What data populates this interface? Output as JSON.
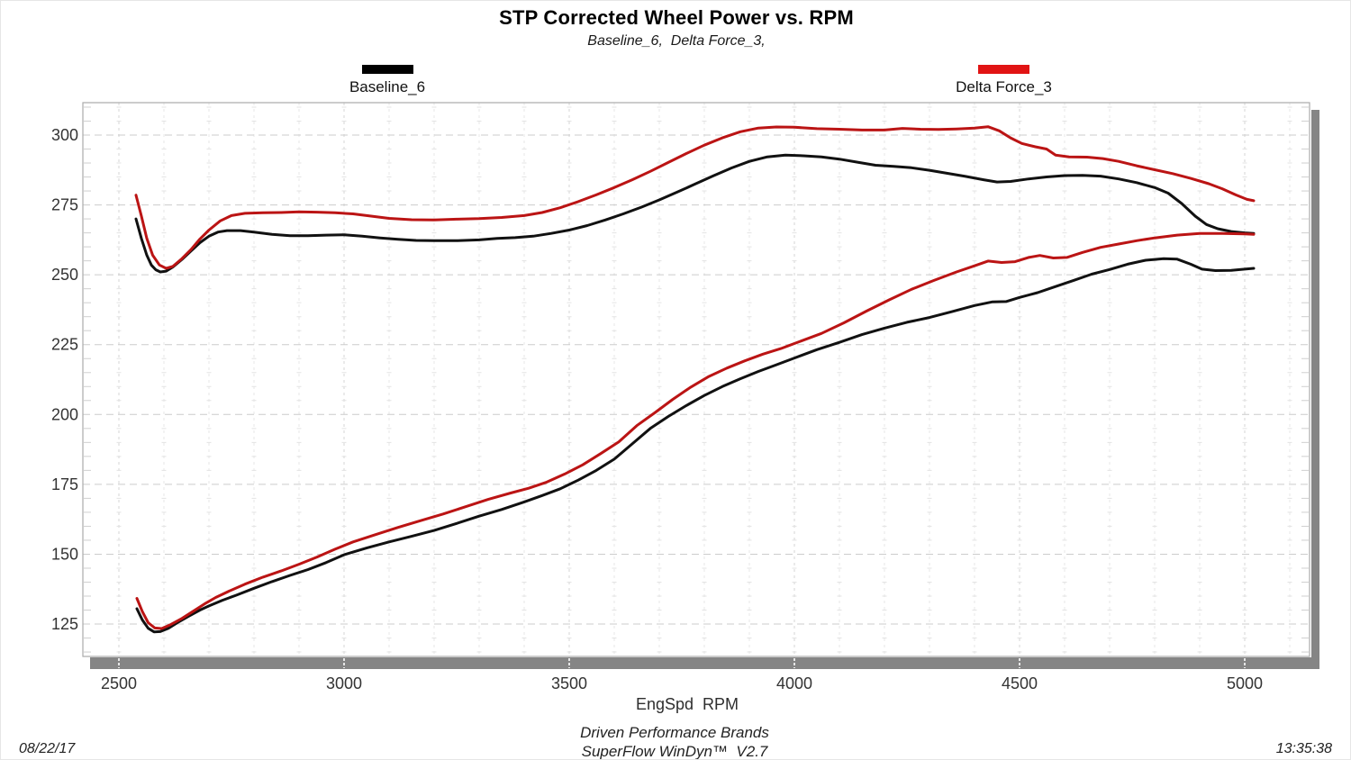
{
  "header": {
    "title": "STP Corrected Wheel Power vs. RPM",
    "subtitle": "Baseline_6,  Delta Force_3,"
  },
  "legend": {
    "items": [
      {
        "label": "Baseline_6",
        "color": "#000000"
      },
      {
        "label": "Delta Force_3",
        "color": "#e11414"
      }
    ]
  },
  "footer": {
    "axis_label": "EngSpd  RPM",
    "brand_line": "Driven Performance Brands",
    "software_line": "SuperFlow WinDyn™  V2.7"
  },
  "stamps": {
    "date": "08/22/17",
    "time": "13:35:38"
  },
  "chart_data": {
    "type": "line",
    "title": "STP Corrected Wheel Power vs. RPM",
    "subtitle": "Baseline_6, Delta Force_3,",
    "xlabel": "EngSpd RPM",
    "ylabel": "",
    "x_range": [
      2420,
      5145
    ],
    "y_range": [
      113,
      312
    ],
    "x_ticks": [
      2500,
      3000,
      3500,
      4000,
      4500,
      5000
    ],
    "y_ticks": [
      125,
      150,
      175,
      200,
      225,
      250,
      275,
      300
    ],
    "x_minor_step": 100,
    "y_minor_step": 5,
    "grid": true,
    "legend_position": "top",
    "series": [
      {
        "name": "Baseline_6",
        "curve": "upper",
        "color": "#111111",
        "points": [
          [
            2538,
            270
          ],
          [
            2550,
            263
          ],
          [
            2562,
            257
          ],
          [
            2572,
            253.5
          ],
          [
            2582,
            251.8
          ],
          [
            2592,
            251
          ],
          [
            2605,
            251.3
          ],
          [
            2620,
            252.8
          ],
          [
            2640,
            255.5
          ],
          [
            2660,
            258.5
          ],
          [
            2680,
            261.5
          ],
          [
            2700,
            263.8
          ],
          [
            2720,
            265.3
          ],
          [
            2740,
            265.8
          ],
          [
            2770,
            265.8
          ],
          [
            2800,
            265.3
          ],
          [
            2840,
            264.5
          ],
          [
            2880,
            264
          ],
          [
            2920,
            264
          ],
          [
            2960,
            264.2
          ],
          [
            3000,
            264.3
          ],
          [
            3040,
            263.8
          ],
          [
            3080,
            263.2
          ],
          [
            3120,
            262.7
          ],
          [
            3160,
            262.3
          ],
          [
            3200,
            262.2
          ],
          [
            3250,
            262.2
          ],
          [
            3300,
            262.5
          ],
          [
            3340,
            263
          ],
          [
            3380,
            263.3
          ],
          [
            3420,
            263.8
          ],
          [
            3460,
            264.8
          ],
          [
            3500,
            266
          ],
          [
            3540,
            267.6
          ],
          [
            3580,
            269.6
          ],
          [
            3620,
            271.8
          ],
          [
            3660,
            274.2
          ],
          [
            3700,
            276.8
          ],
          [
            3740,
            279.6
          ],
          [
            3780,
            282.5
          ],
          [
            3820,
            285.4
          ],
          [
            3860,
            288.2
          ],
          [
            3900,
            290.6
          ],
          [
            3940,
            292.2
          ],
          [
            3980,
            292.8
          ],
          [
            4020,
            292.6
          ],
          [
            4060,
            292.2
          ],
          [
            4100,
            291.4
          ],
          [
            4140,
            290.3
          ],
          [
            4180,
            289.2
          ],
          [
            4220,
            288.8
          ],
          [
            4260,
            288.3
          ],
          [
            4300,
            287.4
          ],
          [
            4340,
            286.3
          ],
          [
            4380,
            285.2
          ],
          [
            4420,
            284
          ],
          [
            4450,
            283.2
          ],
          [
            4480,
            283.4
          ],
          [
            4520,
            284.3
          ],
          [
            4560,
            285
          ],
          [
            4600,
            285.5
          ],
          [
            4640,
            285.6
          ],
          [
            4680,
            285.3
          ],
          [
            4720,
            284.3
          ],
          [
            4760,
            283
          ],
          [
            4800,
            281.2
          ],
          [
            4830,
            279.2
          ],
          [
            4860,
            275.5
          ],
          [
            4890,
            271
          ],
          [
            4915,
            268
          ],
          [
            4940,
            266.5
          ],
          [
            4970,
            265.5
          ],
          [
            5000,
            265
          ],
          [
            5020,
            264.8
          ]
        ]
      },
      {
        "name": "Delta Force_3",
        "curve": "upper",
        "color": "#bb1414",
        "points": [
          [
            2538,
            278.5
          ],
          [
            2550,
            271
          ],
          [
            2562,
            263
          ],
          [
            2575,
            257
          ],
          [
            2590,
            253.5
          ],
          [
            2605,
            252.3
          ],
          [
            2620,
            253
          ],
          [
            2640,
            255.8
          ],
          [
            2660,
            259
          ],
          [
            2680,
            262.8
          ],
          [
            2700,
            266
          ],
          [
            2725,
            269.3
          ],
          [
            2750,
            271.2
          ],
          [
            2780,
            272
          ],
          [
            2820,
            272.2
          ],
          [
            2860,
            272.3
          ],
          [
            2900,
            272.5
          ],
          [
            2940,
            272.4
          ],
          [
            2980,
            272.2
          ],
          [
            3020,
            271.8
          ],
          [
            3060,
            271
          ],
          [
            3100,
            270.2
          ],
          [
            3150,
            269.7
          ],
          [
            3200,
            269.6
          ],
          [
            3250,
            269.9
          ],
          [
            3300,
            270.1
          ],
          [
            3350,
            270.5
          ],
          [
            3400,
            271.2
          ],
          [
            3440,
            272.3
          ],
          [
            3480,
            274
          ],
          [
            3520,
            276.2
          ],
          [
            3560,
            278.6
          ],
          [
            3600,
            281.2
          ],
          [
            3640,
            284
          ],
          [
            3680,
            287
          ],
          [
            3720,
            290.2
          ],
          [
            3760,
            293.4
          ],
          [
            3800,
            296.4
          ],
          [
            3840,
            299
          ],
          [
            3880,
            301.2
          ],
          [
            3920,
            302.5
          ],
          [
            3960,
            302.9
          ],
          [
            4000,
            302.8
          ],
          [
            4050,
            302.3
          ],
          [
            4100,
            302.1
          ],
          [
            4150,
            301.8
          ],
          [
            4200,
            301.8
          ],
          [
            4240,
            302.4
          ],
          [
            4280,
            302.1
          ],
          [
            4320,
            302
          ],
          [
            4360,
            302.2
          ],
          [
            4400,
            302.5
          ],
          [
            4430,
            303
          ],
          [
            4455,
            301.5
          ],
          [
            4480,
            299
          ],
          [
            4505,
            297
          ],
          [
            4535,
            295.8
          ],
          [
            4560,
            295
          ],
          [
            4580,
            292.8
          ],
          [
            4610,
            292.2
          ],
          [
            4650,
            292.1
          ],
          [
            4685,
            291.6
          ],
          [
            4720,
            290.6
          ],
          [
            4760,
            289
          ],
          [
            4800,
            287.6
          ],
          [
            4840,
            286.2
          ],
          [
            4880,
            284.5
          ],
          [
            4920,
            282.6
          ],
          [
            4950,
            280.8
          ],
          [
            4980,
            278.6
          ],
          [
            5005,
            277
          ],
          [
            5020,
            276.5
          ]
        ]
      },
      {
        "name": "Baseline_6",
        "curve": "lower",
        "color": "#111111",
        "points": [
          [
            2540,
            130.5
          ],
          [
            2552,
            126.5
          ],
          [
            2565,
            123.5
          ],
          [
            2578,
            122.2
          ],
          [
            2592,
            122.3
          ],
          [
            2610,
            123.5
          ],
          [
            2630,
            125.5
          ],
          [
            2655,
            127.8
          ],
          [
            2680,
            130
          ],
          [
            2700,
            131.5
          ],
          [
            2730,
            133.5
          ],
          [
            2760,
            135.3
          ],
          [
            2800,
            137.8
          ],
          [
            2840,
            140.2
          ],
          [
            2880,
            142.4
          ],
          [
            2920,
            144.5
          ],
          [
            2960,
            147
          ],
          [
            3000,
            149.8
          ],
          [
            3050,
            152.2
          ],
          [
            3100,
            154.4
          ],
          [
            3150,
            156.4
          ],
          [
            3200,
            158.5
          ],
          [
            3250,
            161
          ],
          [
            3300,
            163.6
          ],
          [
            3350,
            166
          ],
          [
            3400,
            168.7
          ],
          [
            3440,
            171
          ],
          [
            3480,
            173.4
          ],
          [
            3520,
            176.5
          ],
          [
            3560,
            180
          ],
          [
            3600,
            184
          ],
          [
            3640,
            189.5
          ],
          [
            3680,
            195
          ],
          [
            3720,
            199.3
          ],
          [
            3760,
            203.2
          ],
          [
            3800,
            206.8
          ],
          [
            3840,
            210
          ],
          [
            3880,
            212.8
          ],
          [
            3920,
            215.4
          ],
          [
            3960,
            217.8
          ],
          [
            4000,
            220.2
          ],
          [
            4050,
            223.2
          ],
          [
            4100,
            225.8
          ],
          [
            4150,
            228.6
          ],
          [
            4200,
            230.9
          ],
          [
            4250,
            233
          ],
          [
            4300,
            234.7
          ],
          [
            4350,
            236.8
          ],
          [
            4400,
            239
          ],
          [
            4440,
            240.3
          ],
          [
            4470,
            240.4
          ],
          [
            4500,
            241.9
          ],
          [
            4540,
            243.6
          ],
          [
            4580,
            245.8
          ],
          [
            4620,
            248
          ],
          [
            4660,
            250.2
          ],
          [
            4700,
            251.9
          ],
          [
            4740,
            253.8
          ],
          [
            4780,
            255.2
          ],
          [
            4820,
            255.8
          ],
          [
            4850,
            255.6
          ],
          [
            4880,
            253.8
          ],
          [
            4905,
            252
          ],
          [
            4935,
            251.5
          ],
          [
            4970,
            251.6
          ],
          [
            5000,
            252
          ],
          [
            5020,
            252.3
          ]
        ]
      },
      {
        "name": "Delta Force_3",
        "curve": "lower",
        "color": "#bb1414",
        "points": [
          [
            2540,
            134.2
          ],
          [
            2552,
            129.5
          ],
          [
            2565,
            125.5
          ],
          [
            2580,
            123.6
          ],
          [
            2595,
            123.4
          ],
          [
            2615,
            124.8
          ],
          [
            2640,
            127
          ],
          [
            2665,
            129.6
          ],
          [
            2690,
            132.2
          ],
          [
            2715,
            134.5
          ],
          [
            2745,
            136.8
          ],
          [
            2780,
            139.3
          ],
          [
            2820,
            141.8
          ],
          [
            2860,
            144
          ],
          [
            2900,
            146.4
          ],
          [
            2940,
            149
          ],
          [
            2980,
            151.8
          ],
          [
            3020,
            154.4
          ],
          [
            3070,
            157
          ],
          [
            3120,
            159.6
          ],
          [
            3170,
            162
          ],
          [
            3220,
            164.4
          ],
          [
            3270,
            167
          ],
          [
            3320,
            169.6
          ],
          [
            3370,
            171.9
          ],
          [
            3410,
            173.6
          ],
          [
            3450,
            175.8
          ],
          [
            3490,
            178.7
          ],
          [
            3530,
            182
          ],
          [
            3570,
            186
          ],
          [
            3610,
            190.2
          ],
          [
            3650,
            196
          ],
          [
            3690,
            200.6
          ],
          [
            3730,
            205.4
          ],
          [
            3770,
            209.8
          ],
          [
            3810,
            213.6
          ],
          [
            3850,
            216.6
          ],
          [
            3890,
            219.2
          ],
          [
            3930,
            221.6
          ],
          [
            3970,
            223.6
          ],
          [
            4010,
            226
          ],
          [
            4060,
            229
          ],
          [
            4110,
            232.8
          ],
          [
            4160,
            237
          ],
          [
            4210,
            241
          ],
          [
            4260,
            244.8
          ],
          [
            4310,
            248
          ],
          [
            4360,
            251
          ],
          [
            4400,
            253.2
          ],
          [
            4430,
            254.9
          ],
          [
            4460,
            254.4
          ],
          [
            4490,
            254.7
          ],
          [
            4520,
            256.2
          ],
          [
            4545,
            256.9
          ],
          [
            4575,
            256
          ],
          [
            4605,
            256.2
          ],
          [
            4640,
            258
          ],
          [
            4680,
            259.8
          ],
          [
            4720,
            261
          ],
          [
            4760,
            262.2
          ],
          [
            4800,
            263.2
          ],
          [
            4850,
            264.2
          ],
          [
            4900,
            264.8
          ],
          [
            4950,
            264.8
          ],
          [
            5000,
            264.6
          ],
          [
            5020,
            264.5
          ]
        ]
      }
    ]
  }
}
